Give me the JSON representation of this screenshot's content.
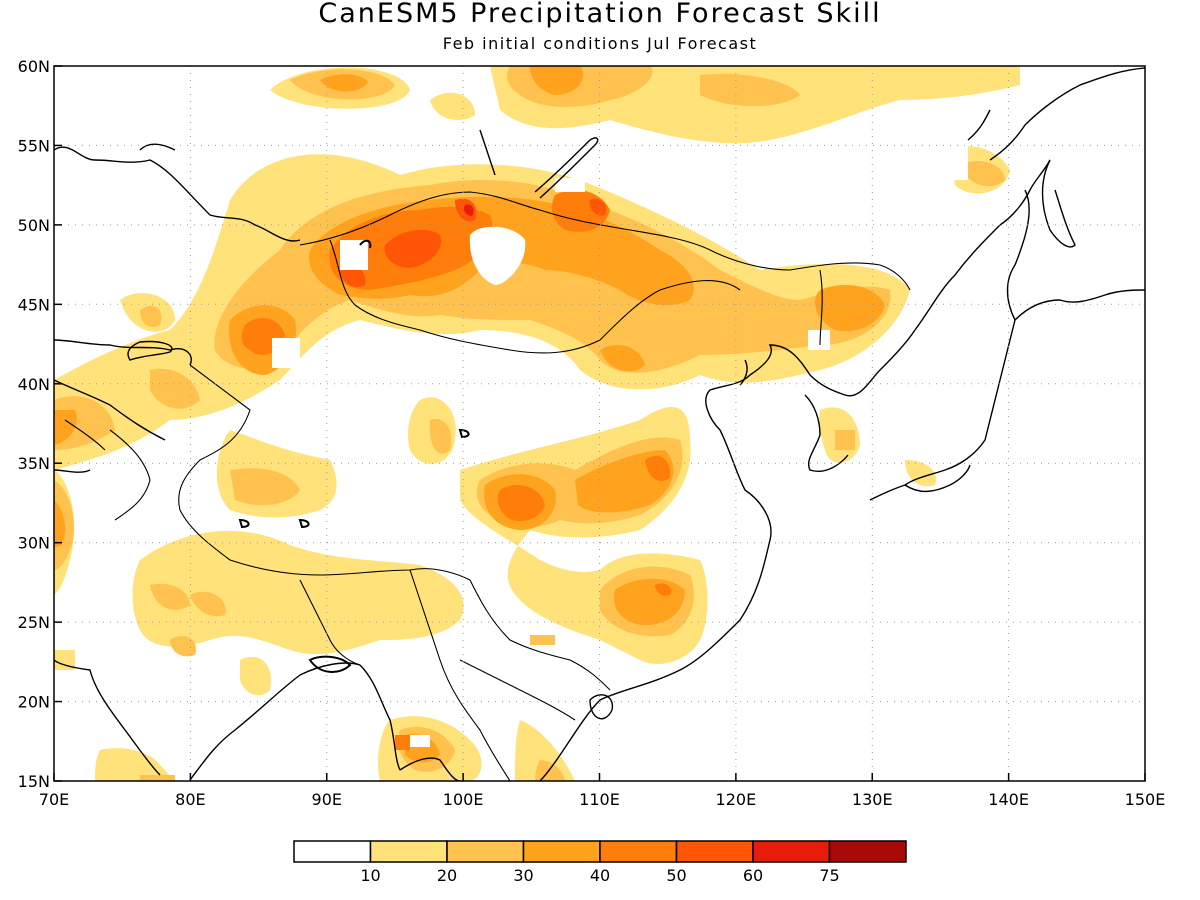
{
  "title": "CanESM5 Precipitation Forecast Skill",
  "subtitle": "Feb initial conditions  Jul Forecast",
  "map": {
    "lon_range": [
      70,
      150
    ],
    "lat_range": [
      15,
      60
    ],
    "lon_ticks": [
      "70E",
      "80E",
      "90E",
      "100E",
      "110E",
      "120E",
      "130E",
      "140E",
      "150E"
    ],
    "lat_ticks": [
      "15N",
      "20N",
      "25N",
      "30N",
      "35N",
      "40N",
      "45N",
      "50N",
      "55N",
      "60N"
    ],
    "gridlines": "dotted"
  },
  "colorbar": {
    "labels": [
      "10",
      "20",
      "30",
      "40",
      "50",
      "60",
      "75"
    ],
    "colors": [
      "#ffffff",
      "#ffe27a",
      "#ffc24f",
      "#ffa31f",
      "#ff7d0a",
      "#ff5507",
      "#e81c0a",
      "#a80a0a"
    ]
  }
}
